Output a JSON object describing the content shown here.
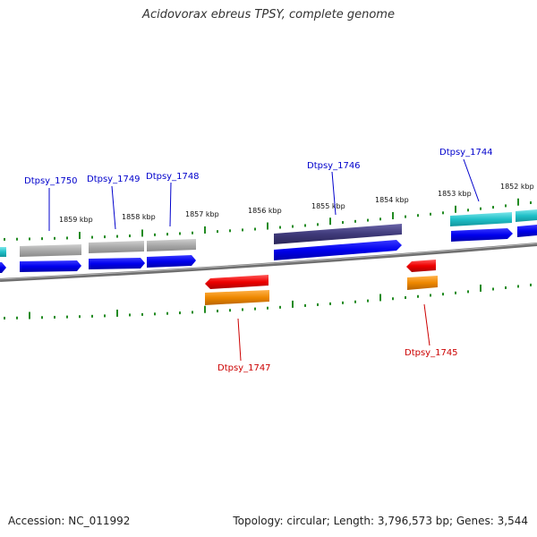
{
  "title": "Acidovorax ebreus TPSY, complete genome",
  "footer": {
    "accession": "Accession: NC_011992",
    "stats": "Topology: circular; Length: 3,796,573 bp; Genes: 3,544"
  },
  "scale_labels": [
    "1859 kbp",
    "1858 kbp",
    "1857 kbp",
    "1856 kbp",
    "1855 kbp",
    "1854 kbp",
    "1853 kbp",
    "1852 kbp"
  ],
  "gene_labels": {
    "Dtpsy_1750": "Dtpsy_1750",
    "Dtpsy_1749": "Dtpsy_1749",
    "Dtpsy_1748": "Dtpsy_1748",
    "Dtpsy_1746": "Dtpsy_1746",
    "Dtpsy_1744": "Dtpsy_1744",
    "Dtpsy_1747": "Dtpsy_1747",
    "Dtpsy_1745": "Dtpsy_1745"
  },
  "colors": {
    "forward_label": "#0000cc",
    "reverse_label": "#cc0000",
    "tick": "#228b22",
    "backbone": "#808080",
    "cds_blue": "#0000ee",
    "gray_feature": "#a9a9a9",
    "darkslate_feature": "#3f3a7a",
    "cyan_feature": "#20c0c8",
    "red_feature": "#ee0000",
    "orange_feature": "#ee8800"
  }
}
